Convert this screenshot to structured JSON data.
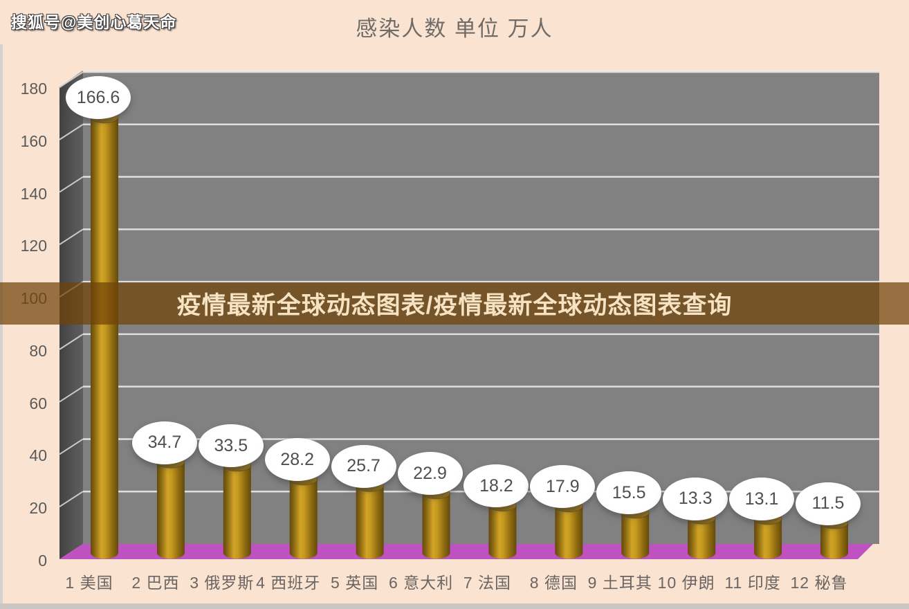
{
  "watermark": {
    "text": "搜狐号@美创心葛天命"
  },
  "header": {
    "title": "感染人数 单位 万人"
  },
  "banner": {
    "text": "疫情最新全球动态图表/疫情最新全球动态图表查询"
  },
  "chart_data": {
    "type": "bar",
    "style": "3d-cylinder",
    "title": "感染人数 单位 万人",
    "unit": "万人",
    "categories": [
      "1 美国",
      "2 巴西",
      "3 俄罗斯",
      "4 西班牙",
      "5 英国",
      "6 意大利",
      "7 法国",
      "8 德国",
      "9 土耳其",
      "10 伊朗",
      "11 印度",
      "12 秘鲁"
    ],
    "values": [
      166.6,
      34.7,
      33.5,
      28.2,
      25.7,
      22.9,
      18.2,
      17.9,
      15.5,
      13.3,
      13.1,
      11.5
    ],
    "xlabel": "",
    "ylabel": "",
    "ylim": [
      0,
      180
    ],
    "ytick_step": 20,
    "yticks": [
      0,
      20,
      40,
      60,
      80,
      100,
      120,
      140,
      160,
      180
    ],
    "grid": true,
    "legend": false,
    "data_labels": "white-oval-bubbles"
  },
  "colors": {
    "background": "#FBE3D2",
    "wall_back": "#818181",
    "wall_side_dark": "#454545",
    "wall_side_light": "#5A5A5A",
    "floor": "#BE52C0",
    "gridline": "#E5E5E5",
    "bar_dark": "#63490C",
    "bar_mid": "#C1941C",
    "bar_light": "#D0A425",
    "bar_top": "#8A660F",
    "bubble_fill": "#FFFFFF",
    "bubble_text": "#4F4F4F",
    "axis_text": "#5A5A5A",
    "category_text": "#6A6562",
    "title_text": "#6F6B67",
    "banner_bg": "rgba(112,66,8,0.72)",
    "banner_text": "#F6E3C4",
    "watermark_fill": "#FFFFFF",
    "watermark_outline": "#3A3A3A",
    "edge_strip": "#D5D2CF"
  }
}
